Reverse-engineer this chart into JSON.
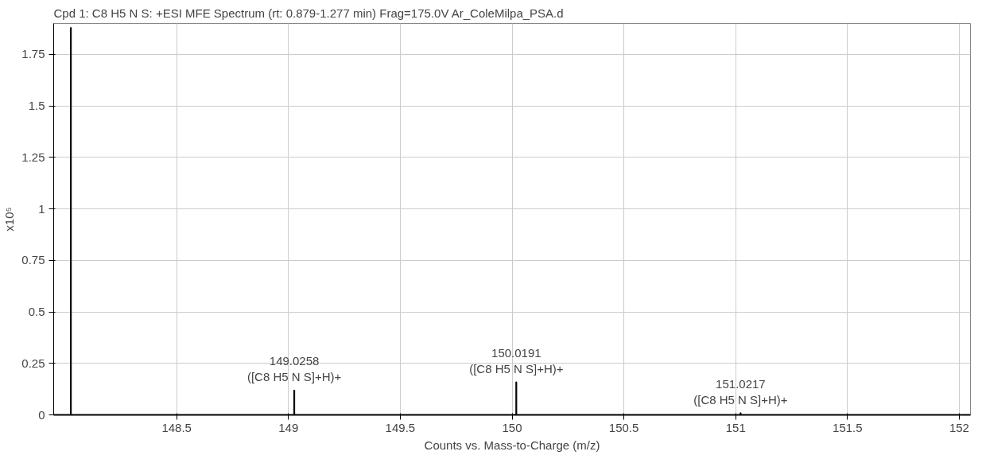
{
  "chart_data": {
    "type": "bar",
    "title": "Cpd 1: C8 H5 N S: +ESI MFE Spectrum (rt: 0.879-1.277 min) Frag=175.0V Ar_ColeMilpa_PSA.d",
    "xlabel": "Counts vs. Mass-to-Charge (m/z)",
    "ylabel": "x10⁵",
    "x": [
      148.027,
      149.026,
      150.019,
      151.022
    ],
    "series": [
      {
        "color": "#000000",
        "values": [
          1.88,
          0.12,
          0.16,
          0.01
        ]
      }
    ],
    "xlim": [
      147.95,
      152.05
    ],
    "xticks": [
      148.5,
      149,
      149.5,
      150,
      150.5,
      151,
      151.5,
      152
    ],
    "ylim": [
      0,
      1.9
    ],
    "yticks": [
      0,
      0.25,
      0.5,
      0.75,
      1,
      1.25,
      1.5,
      1.75
    ],
    "grid": true,
    "annotations": [
      {
        "text": "149.0258",
        "x": 149.026,
        "y": 0.12
      },
      {
        "text": "([C8 H5 N S]+H)+",
        "x": 149.026,
        "y": 0.12
      },
      {
        "text": "150.0191",
        "x": 150.019,
        "y": 0.16
      },
      {
        "text": "([C8 H5 N S]+H)+",
        "x": 150.019,
        "y": 0.16
      },
      {
        "text": "151.0217",
        "x": 151.022,
        "y": 0.01
      },
      {
        "text": "([C8 H5 N S]+H)+",
        "x": 151.022,
        "y": 0.01
      }
    ]
  }
}
